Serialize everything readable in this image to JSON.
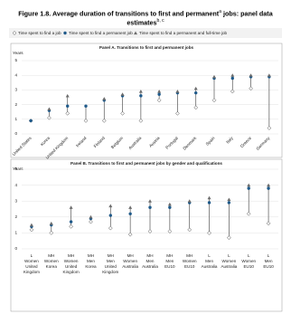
{
  "header": {
    "title": "Figure 1.8.  Average duration of transitions to first and permanent",
    "title_sup1": "a",
    "title_cont": "jobs: panel data estimates",
    "title_sup2": "b, c"
  },
  "chart_data": [
    {
      "type": "range",
      "title": "Panel A. Transitions to first and permanent jobs",
      "ylabel": "Years",
      "categories": [
        "United States",
        "Korea",
        "United Kingdom",
        "Ireland",
        "Finland",
        "Belgium",
        "Australia",
        "Austria",
        "Portugal",
        "Denmark",
        "Spain",
        "Italy",
        "Greece",
        "Germany"
      ],
      "series": [
        {
          "name": "Time spent to find a job",
          "color": "#ffffff",
          "marker": "diamond",
          "values": [
            0.9,
            1.1,
            1.4,
            0.9,
            0.9,
            1.4,
            0.9,
            2.3,
            1.4,
            1.8,
            2.3,
            2.9,
            3.1,
            0.4
          ]
        },
        {
          "name": "Time spent to find a permanent job",
          "color": "#1f5a8a",
          "marker": "circle",
          "values": [
            0.9,
            1.6,
            1.9,
            1.9,
            2.3,
            2.6,
            2.6,
            2.7,
            2.8,
            2.8,
            3.8,
            3.8,
            3.9,
            3.9
          ]
        },
        {
          "name": "Time spent to find a permanent and full-time job",
          "color": "#6d6d6d",
          "marker": "triangle",
          "values": [
            null,
            1.7,
            2.6,
            null,
            2.4,
            2.7,
            2.9,
            2.9,
            2.9,
            3.1,
            3.9,
            4.0,
            4.0,
            4.0
          ]
        }
      ],
      "ylim": [
        0,
        5
      ],
      "yticks": [
        0,
        1,
        2,
        3,
        4,
        5
      ],
      "grid": true
    },
    {
      "type": "range",
      "title": "Panel B. Transitions to first and permanent jobs by gender and qualifications",
      "ylabel": "Years",
      "categories": [
        [
          "L",
          "Women",
          "United",
          "Kingdom"
        ],
        [
          "MH",
          "Women",
          "Korea"
        ],
        [
          "MH",
          "Women",
          "United",
          "Kingdom"
        ],
        [
          "MH",
          "Men",
          "Korea"
        ],
        [
          "MH",
          "Men",
          "United",
          "Kingdom"
        ],
        [
          "MH",
          "Women",
          "Australia"
        ],
        [
          "MH",
          "Men",
          "Australia"
        ],
        [
          "MH",
          "Men",
          "EU10"
        ],
        [
          "MH",
          "Women",
          "EU10"
        ],
        [
          "L",
          "Men",
          "Australia"
        ],
        [
          "L",
          "Women",
          "Australia"
        ],
        [
          "L",
          "Women",
          "EU10"
        ],
        [
          "L",
          "Men",
          "EU10"
        ]
      ],
      "series": [
        {
          "color": "#ffffff",
          "marker": "diamond",
          "values": [
            1.2,
            1.0,
            1.4,
            1.7,
            1.3,
            0.9,
            1.1,
            1.1,
            1.2,
            1.0,
            0.7,
            2.2,
            1.6
          ]
        },
        {
          "color": "#1f5a8a",
          "marker": "circle",
          "values": [
            1.4,
            1.5,
            1.7,
            1.9,
            2.1,
            2.2,
            2.6,
            2.6,
            2.9,
            2.9,
            2.9,
            3.8,
            3.8
          ]
        },
        {
          "color": "#6d6d6d",
          "marker": "triangle",
          "values": [
            1.5,
            1.6,
            2.6,
            2.0,
            2.7,
            2.6,
            3.0,
            2.8,
            3.0,
            3.2,
            3.1,
            4.0,
            4.0
          ]
        }
      ],
      "ylim": [
        0,
        5
      ],
      "yticks": [
        0,
        1,
        2,
        3,
        4,
        5
      ],
      "grid": true
    }
  ]
}
